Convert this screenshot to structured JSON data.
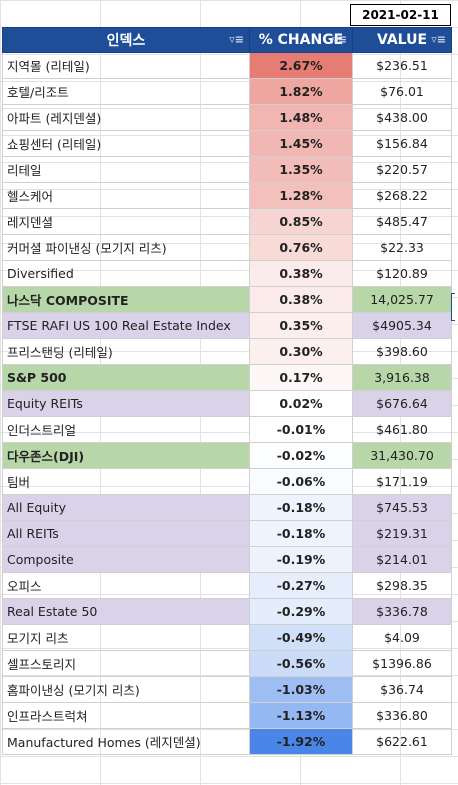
{
  "date": "2021-02-11",
  "columns": {
    "name": "인덱스",
    "change": "% CHANGE",
    "value": "VALUE"
  },
  "rows": [
    {
      "name": "지역몰 (리테일)",
      "change": "2.67%",
      "value": "$236.51",
      "change_num": 2.67,
      "hl": "none"
    },
    {
      "name": "호텔/리조트",
      "change": "1.82%",
      "value": "$76.01",
      "change_num": 1.82,
      "hl": "none"
    },
    {
      "name": "아파트 (레지덴셜)",
      "change": "1.48%",
      "value": "$438.00",
      "change_num": 1.48,
      "hl": "none"
    },
    {
      "name": "쇼핑센터 (리테일)",
      "change": "1.45%",
      "value": "$156.84",
      "change_num": 1.45,
      "hl": "none"
    },
    {
      "name": "리테일",
      "change": "1.35%",
      "value": "$220.57",
      "change_num": 1.35,
      "hl": "none"
    },
    {
      "name": "헬스케어",
      "change": "1.28%",
      "value": "$268.22",
      "change_num": 1.28,
      "hl": "none"
    },
    {
      "name": "레지덴셜",
      "change": "0.85%",
      "value": "$485.47",
      "change_num": 0.85,
      "hl": "none"
    },
    {
      "name": "커머셜 파이낸싱 (모기지 리츠)",
      "change": "0.76%",
      "value": "$22.33",
      "change_num": 0.76,
      "hl": "none"
    },
    {
      "name": "Diversified",
      "change": "0.38%",
      "value": "$120.89",
      "change_num": 0.38,
      "hl": "none"
    },
    {
      "name": "나스닥 COMPOSITE",
      "change": "0.38%",
      "value": "14,025.77",
      "change_num": 0.38,
      "hl": "green"
    },
    {
      "name": "FTSE RAFI US 100 Real Estate Index",
      "change": "0.35%",
      "value": "$4905.34",
      "change_num": 0.35,
      "hl": "purple"
    },
    {
      "name": "프리스탠딩 (리테일)",
      "change": "0.30%",
      "value": "$398.60",
      "change_num": 0.3,
      "hl": "none"
    },
    {
      "name": "S&P 500",
      "change": "0.17%",
      "value": "3,916.38",
      "change_num": 0.17,
      "hl": "green"
    },
    {
      "name": "Equity REITs",
      "change": "0.02%",
      "value": "$676.64",
      "change_num": 0.02,
      "hl": "purple"
    },
    {
      "name": "인더스트리얼",
      "change": "-0.01%",
      "value": "$461.80",
      "change_num": -0.01,
      "hl": "none"
    },
    {
      "name": "다우존스(DJI)",
      "change": "-0.02%",
      "value": "31,430.70",
      "change_num": -0.02,
      "hl": "green"
    },
    {
      "name": "팀버",
      "change": "-0.06%",
      "value": "$171.19",
      "change_num": -0.06,
      "hl": "none"
    },
    {
      "name": "All Equity",
      "change": "-0.18%",
      "value": "$745.53",
      "change_num": -0.18,
      "hl": "purple"
    },
    {
      "name": "All REITs",
      "change": "-0.18%",
      "value": "$219.31",
      "change_num": -0.18,
      "hl": "purple"
    },
    {
      "name": "Composite",
      "change": "-0.19%",
      "value": "$214.01",
      "change_num": -0.19,
      "hl": "purple"
    },
    {
      "name": "오피스",
      "change": "-0.27%",
      "value": "$298.35",
      "change_num": -0.27,
      "hl": "none"
    },
    {
      "name": "Real Estate 50",
      "change": "-0.29%",
      "value": "$336.78",
      "change_num": -0.29,
      "hl": "purple"
    },
    {
      "name": "모기지 리츠",
      "change": "-0.49%",
      "value": "$4.09",
      "change_num": -0.49,
      "hl": "none"
    },
    {
      "name": "셀프스토리지",
      "change": "-0.56%",
      "value": "$1396.86",
      "change_num": -0.56,
      "hl": "none"
    },
    {
      "name": "홈파이낸싱 (모기지 리츠)",
      "change": "-1.03%",
      "value": "$36.74",
      "change_num": -1.03,
      "hl": "none"
    },
    {
      "name": "인프라스트럭쳐",
      "change": "-1.13%",
      "value": "$336.80",
      "change_num": -1.13,
      "hl": "none"
    },
    {
      "name": "Manufactured Homes (레지덴셜)",
      "change": "-1.92%",
      "value": "$622.61",
      "change_num": -1.92,
      "hl": "none"
    }
  ],
  "colors": {
    "positive_max": "#e67c73",
    "neutral": "#ffffff",
    "negative_max": "#4a86e8",
    "header_bg": "#1f4e99",
    "green_row": "#b7d7a8",
    "purple_row": "#d9d2e9"
  },
  "icons": {
    "filter": "filter-icon"
  }
}
